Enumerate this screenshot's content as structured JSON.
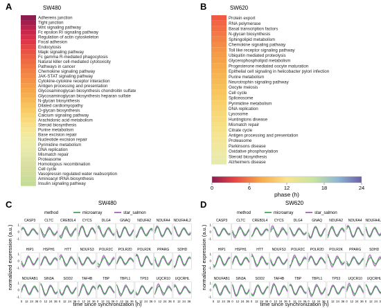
{
  "panels": {
    "A": {
      "letter": "A",
      "title": "SW480"
    },
    "B": {
      "letter": "B",
      "title": "SW620"
    },
    "C": {
      "letter": "C",
      "title": "SW480"
    },
    "D": {
      "letter": "D",
      "title": "SW620"
    }
  },
  "colorbar": {
    "label": "phase (h)",
    "ticks": [
      "0",
      "6",
      "12",
      "18",
      "24"
    ],
    "range": [
      0,
      24
    ]
  },
  "legend": {
    "title": "method",
    "items": [
      {
        "label": "microarray",
        "color": "#2e9e3e"
      },
      {
        "label": "star_salmon",
        "color": "#9b4fb0"
      }
    ]
  },
  "small_multiples_axes": {
    "ylabel": "normalized expression (a.u.)",
    "xlabel": "time since synchronization (h)",
    "yticks": [
      "1",
      "0",
      "-1"
    ],
    "xticks": [
      "0",
      "12",
      "24",
      "36"
    ]
  },
  "chart_data": [
    {
      "type": "heatmap",
      "title": "SW480",
      "colorscale": "phase (h), 0-24",
      "rows": [
        "Adherens junction",
        "Tight junction",
        "Wnt signaling pathway",
        "Fc epsilon RI signaling pathway",
        "Regulation of actin cytoskeleton",
        "Focal adhesion",
        "Endocytosis",
        "Mapk signaling pathway",
        "Fc gamma R-mediated phagocytosis",
        "Natural killer cell-mediated cytotoxicity",
        "Pathways in cancer",
        "Chemokine signaling pathway",
        "JAK-STAT signaling pathway",
        "Cytokine-cytokine receptor interaction",
        "Antigen processing and presentation",
        "Glycosaminoglycan biosynthesis chondroitin sulfate",
        "Glycosaminoglycan biosynthesis heparan sulfate",
        "N-glycan biosynthesis",
        "Dilated cardiomyopathy",
        "O-glycan biosynthesis",
        "Calcium signaling pathway",
        "Arachidonic acid metabolism",
        "Steroid biosynthesis",
        "Purine metabolism",
        "Base excision repair",
        "Nucleotide excision repair",
        "Pyrimidine metabolism",
        "DNA replication",
        "Mismatch repair",
        "Proteasome",
        "Homologous recombination",
        "Cell cycle",
        "Vasopressin regulated water reabsorption",
        "Aminoacyl tRNA biosynthesis",
        "Insulin signaling pathway"
      ],
      "phase_colors": [
        "#8c1d4f",
        "#a21f4e",
        "#b8224d",
        "#c9284c",
        "#d62f4a",
        "#df3748",
        "#e54545",
        "#e95343",
        "#ec5f42",
        "#ef6a42",
        "#f07543",
        "#f27f43",
        "#f38944",
        "#f49345",
        "#f59d47",
        "#f6a74a",
        "#f7b04f",
        "#f7b955",
        "#f8c25d",
        "#f8cb67",
        "#f8d372",
        "#f8da7d",
        "#f7e089",
        "#f5e595",
        "#f2e99f",
        "#eeeba5",
        "#ebecaa",
        "#e7eaac",
        "#e3e7ab",
        "#dfe3a8",
        "#dae0a3",
        "#d6dd9f",
        "#d1dd9a",
        "#cadc97",
        "#c4dc95"
      ]
    },
    {
      "type": "heatmap",
      "title": "SW620",
      "colorscale": "phase (h), 0-24",
      "rows": [
        "Protein export",
        "RNA polymerase",
        "Basal transcription factors",
        "N-glycan biosynthesis",
        "Sphingolipid metabolism",
        "Chemokine signaling pathway",
        "Toll like receptor signaling pathway",
        "Ubiquitin mediated proteolysis",
        "Glycerophospholipid metabolism",
        "Progesterone mediated oocyte maturation",
        "Epithelial cell signaling in helicobacter pylori infection",
        "Purine metabolism",
        "Neurotrophin signaling pathway",
        "Oocyte meiosis",
        "Cell cycle",
        "Spliceosome",
        "Pyrimidine metabolism",
        "DNA replication",
        "Lysosome",
        "Huntingtons disease",
        "Mismatch repair",
        "Citrate cycle",
        "Antigen processing and presentation",
        "Proteasome",
        "Parkinsons disease",
        "Oxidative phosphorylation",
        "Steroid biosynthesis",
        "Alzheimers disease"
      ],
      "phase_colors": [
        "#f05a43",
        "#f16444",
        "#f26e44",
        "#f37845",
        "#f38245",
        "#f48b46",
        "#f49447",
        "#f59c48",
        "#f5a34a",
        "#f6aa4c",
        "#f6b04e",
        "#f7b651",
        "#f7bb55",
        "#f7c059",
        "#f8c55e",
        "#f8ca63",
        "#f8cf69",
        "#f8d36f",
        "#f8d775",
        "#f8db7c",
        "#f7df83",
        "#f6e28a",
        "#f5e491",
        "#f3e698",
        "#f1e89e",
        "#eee9a3",
        "#ebeaa8",
        "#e7eaac"
      ]
    },
    {
      "type": "line",
      "title": "SW480",
      "series": [
        "microarray",
        "star_salmon"
      ],
      "x": [
        0,
        12,
        24,
        36
      ],
      "genes": [
        "CASP3",
        "CLTC",
        "CREB3L4",
        "CYCS",
        "DLG4",
        "GNAQ",
        "NDUFA2",
        "NDUFA4",
        "NDUFA4L2",
        "HIP1",
        "HSPH1",
        "HTT",
        "NDUFS3",
        "POLR2C",
        "POLR2D",
        "POLR2K",
        "PPARG",
        "SDHD",
        "NDUFAB1",
        "SIN3A",
        "SOD2",
        "TAF4B",
        "TBP",
        "TBPL1",
        "TP53",
        "UQCR10",
        "UQCRHL"
      ]
    },
    {
      "type": "line",
      "title": "SW620",
      "series": [
        "microarray",
        "star_salmon"
      ],
      "x": [
        0,
        12,
        24,
        36
      ],
      "genes": [
        "CASP3",
        "CLTC",
        "CREB3L4",
        "CYCS",
        "DLG4",
        "GNAQ",
        "NDUFA2",
        "NDUFA4",
        "NDUFA4L2",
        "HIP1",
        "HSPH1",
        "HTT",
        "NDUFS3",
        "POLR2C",
        "POLR2D",
        "POLR2K",
        "PPARG",
        "SDHD",
        "NDUFAB1",
        "SIN3A",
        "SOD2",
        "TAF4B",
        "TBP",
        "TBPL1",
        "TP53",
        "UQCR10",
        "UQCRHL"
      ]
    }
  ]
}
